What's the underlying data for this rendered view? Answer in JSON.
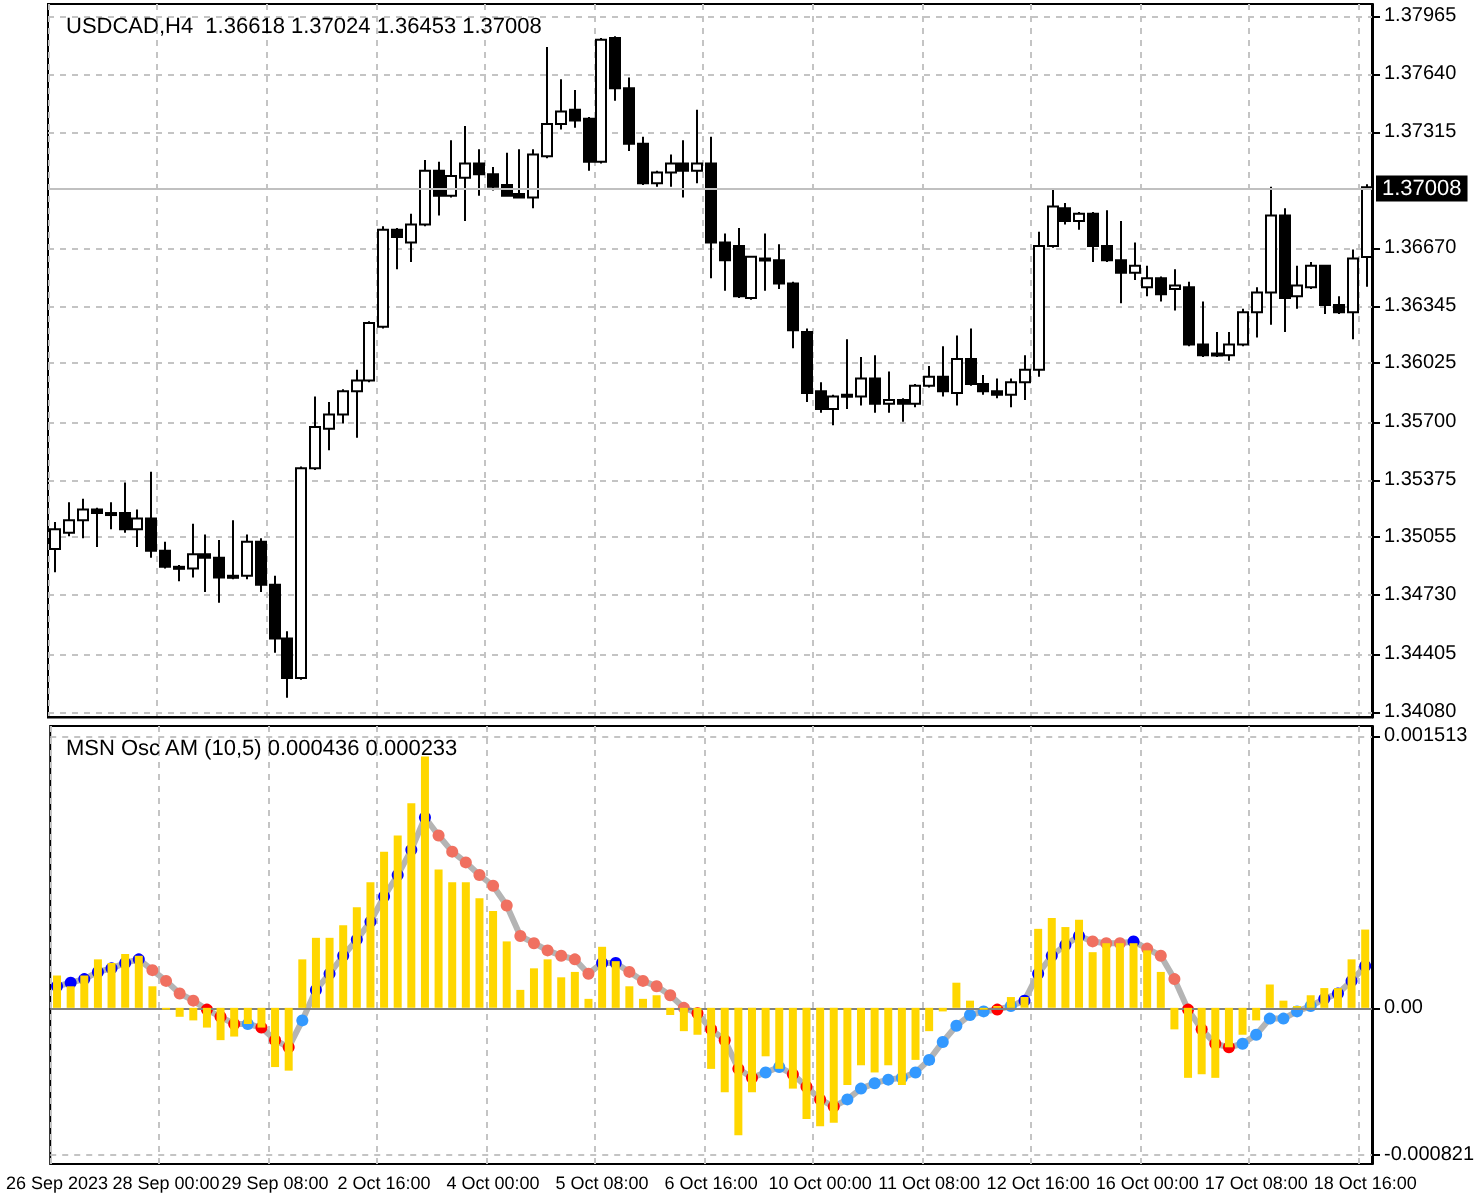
{
  "chart_data": [
    {
      "type": "candlestick",
      "title": "USDCAD,H4  1.36618 1.37024 1.36453 1.37008",
      "categories": [
        null,
        null,
        null,
        null,
        null,
        null,
        null,
        null,
        null,
        null,
        null,
        null,
        null,
        null,
        null,
        null,
        null,
        null,
        null,
        null,
        null,
        null,
        null,
        null,
        null,
        null,
        null,
        null,
        null,
        null,
        null,
        null,
        null,
        null,
        null,
        null,
        null,
        null,
        null,
        null,
        null,
        null,
        null,
        null,
        null,
        null,
        null,
        null,
        null,
        null,
        null,
        null,
        null,
        null,
        null,
        null,
        null,
        null,
        null,
        null,
        null,
        null,
        null,
        null,
        null,
        null,
        null,
        null,
        null,
        null,
        null,
        null,
        null,
        null,
        null,
        null,
        null,
        null,
        null,
        null,
        null,
        null,
        null,
        null,
        null,
        null,
        null,
        null,
        null,
        null,
        null,
        null,
        null,
        null,
        null,
        null,
        null
      ],
      "ohlc": [
        [
          1.3499,
          1.3514,
          1.3486,
          1.351
        ],
        [
          1.3508,
          1.3525,
          1.3506,
          1.3515
        ],
        [
          1.3515,
          1.3527,
          1.3505,
          1.3521
        ],
        [
          1.3521,
          1.3522,
          1.35,
          1.3519
        ],
        [
          1.3519,
          1.3525,
          1.351,
          1.3518
        ],
        [
          1.3519,
          1.3536,
          1.3508,
          1.351
        ],
        [
          1.351,
          1.3521,
          1.35,
          1.3516
        ],
        [
          1.3516,
          1.3542,
          1.3494,
          1.3498
        ],
        [
          1.3498,
          1.3503,
          1.3488,
          1.3489
        ],
        [
          1.3489,
          1.349,
          1.3481,
          1.3488
        ],
        [
          1.3488,
          1.3513,
          1.3483,
          1.3496
        ],
        [
          1.3496,
          1.3507,
          1.3475,
          1.3494
        ],
        [
          1.3494,
          1.3504,
          1.3469,
          1.3483
        ],
        [
          1.3484,
          1.3515,
          1.3482,
          1.3483
        ],
        [
          1.3484,
          1.3507,
          1.3482,
          1.3503
        ],
        [
          1.3503,
          1.3505,
          1.3475,
          1.3479
        ],
        [
          1.3479,
          1.3484,
          1.3441,
          1.3449
        ],
        [
          1.3449,
          1.3453,
          1.3416,
          1.3427
        ],
        [
          1.3427,
          1.3545,
          1.3426,
          1.3544
        ],
        [
          1.3544,
          1.3584,
          1.3543,
          1.3567
        ],
        [
          1.3566,
          1.3581,
          1.3554,
          1.3574
        ],
        [
          1.3574,
          1.3588,
          1.3569,
          1.3587
        ],
        [
          1.3587,
          1.3599,
          1.3561,
          1.3593
        ],
        [
          1.3593,
          1.3626,
          1.3592,
          1.3625
        ],
        [
          1.3623,
          1.3679,
          1.3622,
          1.3677
        ],
        [
          1.3677,
          1.3678,
          1.3655,
          1.3673
        ],
        [
          1.367,
          1.3686,
          1.3659,
          1.368
        ],
        [
          1.368,
          1.3716,
          1.3679,
          1.371
        ],
        [
          1.371,
          1.3715,
          1.3685,
          1.3696
        ],
        [
          1.3696,
          1.3727,
          1.3695,
          1.3707
        ],
        [
          1.3706,
          1.3735,
          1.3682,
          1.3714
        ],
        [
          1.3714,
          1.3722,
          1.3696,
          1.3708
        ],
        [
          1.3708,
          1.3712,
          1.3699,
          1.3701
        ],
        [
          1.3702,
          1.372,
          1.3696,
          1.3696
        ],
        [
          1.3697,
          1.3722,
          1.3695,
          1.3695
        ],
        [
          1.3695,
          1.3722,
          1.3689,
          1.3719
        ],
        [
          1.3718,
          1.3779,
          1.3717,
          1.3736
        ],
        [
          1.3736,
          1.3761,
          1.3733,
          1.3743
        ],
        [
          1.3744,
          1.3755,
          1.3734,
          1.3738
        ],
        [
          1.3739,
          1.374,
          1.371,
          1.3715
        ],
        [
          1.3715,
          1.3784,
          1.3714,
          1.3783
        ],
        [
          1.3784,
          1.3785,
          1.3749,
          1.3756
        ],
        [
          1.3756,
          1.3762,
          1.3721,
          1.3725
        ],
        [
          1.3725,
          1.3729,
          1.3702,
          1.3703
        ],
        [
          1.3703,
          1.371,
          1.3701,
          1.3709
        ],
        [
          1.3709,
          1.3719,
          1.3701,
          1.3714
        ],
        [
          1.3714,
          1.3727,
          1.3695,
          1.371
        ],
        [
          1.371,
          1.3744,
          1.3703,
          1.3714
        ],
        [
          1.3714,
          1.3729,
          1.365,
          1.367
        ],
        [
          1.367,
          1.3675,
          1.3643,
          1.366
        ],
        [
          1.3668,
          1.3678,
          1.3639,
          1.364
        ],
        [
          1.3639,
          1.3662,
          1.3638,
          1.3662
        ],
        [
          1.366,
          1.3675,
          1.3643,
          1.3661
        ],
        [
          1.366,
          1.3669,
          1.3644,
          1.3647
        ],
        [
          1.3647,
          1.3648,
          1.3611,
          1.3621
        ],
        [
          1.362,
          1.3622,
          1.3581,
          1.3586
        ],
        [
          1.3587,
          1.3592,
          1.3575,
          1.3577
        ],
        [
          1.3577,
          1.3585,
          1.3568,
          1.3584
        ],
        [
          1.3584,
          1.3616,
          1.3577,
          1.3585
        ],
        [
          1.3584,
          1.3606,
          1.3579,
          1.3594
        ],
        [
          1.3594,
          1.3607,
          1.3575,
          1.358
        ],
        [
          1.358,
          1.3598,
          1.3575,
          1.3582
        ],
        [
          1.3582,
          1.3583,
          1.357,
          1.358
        ],
        [
          1.358,
          1.3591,
          1.3578,
          1.359
        ],
        [
          1.359,
          1.3601,
          1.3589,
          1.3595
        ],
        [
          1.3595,
          1.3612,
          1.3584,
          1.3587
        ],
        [
          1.3586,
          1.3618,
          1.3579,
          1.3605
        ],
        [
          1.3605,
          1.3622,
          1.359,
          1.3591
        ],
        [
          1.3591,
          1.3596,
          1.3585,
          1.3587
        ],
        [
          1.3587,
          1.3594,
          1.3583,
          1.3585
        ],
        [
          1.3585,
          1.3594,
          1.3578,
          1.3592
        ],
        [
          1.3592,
          1.3607,
          1.3582,
          1.3599
        ],
        [
          1.3599,
          1.3676,
          1.3595,
          1.3668
        ],
        [
          1.3668,
          1.37,
          1.3667,
          1.369
        ],
        [
          1.3689,
          1.3692,
          1.368,
          1.3682
        ],
        [
          1.3682,
          1.3687,
          1.3677,
          1.3686
        ],
        [
          1.3686,
          1.3687,
          1.3659,
          1.3668
        ],
        [
          1.3668,
          1.3688,
          1.3659,
          1.366
        ],
        [
          1.366,
          1.3682,
          1.3636,
          1.3653
        ],
        [
          1.3653,
          1.367,
          1.3649,
          1.3657
        ],
        [
          1.3645,
          1.3657,
          1.364,
          1.365
        ],
        [
          1.365,
          1.3651,
          1.3637,
          1.3641
        ],
        [
          1.3644,
          1.3655,
          1.3632,
          1.3646
        ],
        [
          1.3645,
          1.3648,
          1.3612,
          1.3613
        ],
        [
          1.3613,
          1.3637,
          1.3606,
          1.3607
        ],
        [
          1.3608,
          1.362,
          1.3606,
          1.3607
        ],
        [
          1.3607,
          1.362,
          1.3604,
          1.3613
        ],
        [
          1.3613,
          1.3633,
          1.3612,
          1.3631
        ],
        [
          1.3631,
          1.3645,
          1.3617,
          1.3642
        ],
        [
          1.3642,
          1.3701,
          1.3624,
          1.3685
        ],
        [
          1.3685,
          1.3689,
          1.362,
          1.3639
        ],
        [
          1.364,
          1.3657,
          1.3633,
          1.3646
        ],
        [
          1.3645,
          1.3659,
          1.3644,
          1.3657
        ],
        [
          1.3657,
          1.3657,
          1.363,
          1.3635
        ],
        [
          1.3635,
          1.364,
          1.363,
          1.3631
        ],
        [
          1.3631,
          1.3666,
          1.3616,
          1.3661
        ],
        [
          1.36618,
          1.37024,
          1.36453,
          1.37008
        ]
      ],
      "ylim": [
        1.3405,
        1.3803
      ],
      "yticks": [
        1.37965,
        {
          "value": 1.3764,
          "label": "1.37640"
        },
        1.37315,
        {
          "value": 1.3667,
          "label": "1.36670"
        },
        1.36345,
        1.36025,
        {
          "value": 1.357,
          "label": "1.35700"
        },
        1.35375,
        1.35055,
        {
          "value": 1.3473,
          "label": "1.34730"
        },
        1.34405,
        {
          "value": 1.3408,
          "label": "1.34080"
        }
      ],
      "ref_lines": [
        {
          "axis": "y",
          "value": 1.37008,
          "label": "1.37008",
          "color": "#c0c0c0"
        }
      ],
      "grid": true,
      "tick_labels": "y"
    },
    {
      "type": "bar",
      "title": "MSN Osc AM (10,5) 0.000436 0.000233",
      "categories": [
        "26 Sep 2023",
        null,
        null,
        null,
        null,
        null,
        null,
        null,
        "28 Sep 00:00",
        null,
        null,
        null,
        null,
        null,
        null,
        null,
        "29 Sep 08:00",
        null,
        null,
        null,
        null,
        null,
        null,
        null,
        "2 Oct 16:00",
        null,
        null,
        null,
        null,
        null,
        null,
        null,
        "4 Oct 00:00",
        null,
        null,
        null,
        null,
        null,
        null,
        null,
        "5 Oct 08:00",
        null,
        null,
        null,
        null,
        null,
        null,
        null,
        "6 Oct 16:00",
        null,
        null,
        null,
        null,
        null,
        null,
        null,
        "10 Oct 00:00",
        null,
        null,
        null,
        null,
        null,
        null,
        null,
        "11 Oct 08:00",
        null,
        null,
        null,
        null,
        null,
        null,
        null,
        "12 Oct 16:00",
        null,
        null,
        null,
        null,
        null,
        null,
        null,
        "16 Oct 00:00",
        null,
        null,
        null,
        null,
        null,
        null,
        null,
        "17 Oct 08:00",
        null,
        null,
        null,
        null,
        null,
        null,
        null,
        "18 Oct 16:00"
      ],
      "series": [
        {
          "color": "#ffd700",
          "values": [
            0.00018,
            0.00012,
            0.00018,
            0.00027,
            0.00025,
            0.0003,
            0.00029,
            0.00012,
            -1e-05,
            -5e-05,
            -7e-05,
            -0.00011,
            -0.00018,
            -0.00016,
            -9e-05,
            -0.00011,
            -0.00033,
            -0.00035,
            0.00027,
            0.00039,
            0.00039,
            0.00046,
            0.00056,
            0.0007,
            0.00087,
            0.00096,
            0.00114,
            0.0014,
            0.00077,
            0.0007,
            0.0007,
            0.00061,
            0.00054,
            0.00037,
            0.0001,
            0.00022,
            0.00027,
            0.00017,
            0.0002,
            5e-05,
            0.00034,
            0.00026,
            0.00012,
            5e-05,
            7e-05,
            -4e-05,
            -0.00013,
            -0.00015,
            -0.00034,
            -0.00047,
            -0.00071,
            -0.00047,
            -0.00027,
            -0.00034,
            -0.00045,
            -0.00062,
            -0.00066,
            -0.00064,
            -0.00043,
            -0.00032,
            -0.00036,
            -0.00032,
            -0.00043,
            -0.00029,
            -0.00013,
            -2e-05,
            0.00014,
            4e-05,
            -1e-05,
            1e-05,
            6e-05,
            6e-05,
            0.00044,
            0.0005,
            0.00045,
            0.00049,
            0.00031,
            0.00036,
            0.00036,
            0.00036,
            0.00032,
            0.0002,
            -0.00012,
            -0.00039,
            -0.00037,
            -0.00039,
            -0.00022,
            -0.00015,
            -7e-05,
            0.00013,
            4e-05,
            1e-05,
            7e-05,
            0.00011,
            0.00011,
            0.00027,
            0.000436
          ]
        },
        {
          "type": "line",
          "color": "#b4b4b4",
          "values": [
            0.00012,
            0.00014,
            0.00016,
            0.0002,
            0.00022,
            0.00025,
            0.00027,
            0.00021,
            0.00015,
            8e-05,
            4e-05,
            -1e-05,
            -5e-05,
            -9e-05,
            -9e-05,
            -0.00011,
            -0.00018,
            -0.00022,
            -7e-05,
            0.0001,
            0.00019,
            0.00029,
            0.00038,
            0.00048,
            0.00062,
            0.00074,
            0.00088,
            0.00106,
            0.00096,
            0.00087,
            0.00081,
            0.00074,
            0.00068,
            0.00057,
            0.0004,
            0.00036,
            0.00032,
            0.00029,
            0.00027,
            0.00019,
            0.00025,
            0.00025,
            0.0002,
            0.00015,
            0.00012,
            7e-05,
            0,
            -3e-05,
            -0.00012,
            -0.00018,
            -0.00034,
            -0.00039,
            -0.00036,
            -0.00033,
            -0.00037,
            -0.00044,
            -0.00051,
            -0.00055,
            -0.00051,
            -0.00045,
            -0.00042,
            -0.0004,
            -0.00039,
            -0.00036,
            -0.00029,
            -0.00019,
            -0.0001,
            -4e-05,
            -2e-05,
            -1e-05,
            1e-05,
            4e-05,
            0.00019,
            0.00029,
            0.00035,
            0.0004,
            0.00037,
            0.00036,
            0.00036,
            0.00037,
            0.00033,
            0.00029,
            0.00016,
            -1e-05,
            -0.00012,
            -0.0002,
            -0.00022,
            -0.0002,
            -0.00015,
            -6e-05,
            -6e-05,
            -2e-05,
            1e-05,
            5e-05,
            8e-05,
            0.00015,
            0.000233
          ],
          "colors": [
            "#0000ff",
            "#0000ff",
            "#0000ff",
            "#0000ff",
            "#0000ff",
            "#0000ff",
            "#0000ff",
            "#f07060",
            "#f07060",
            "#f07060",
            "#f07060",
            "#ff0000",
            "#ff0000",
            "#ff0000",
            "#3399ff",
            "#ff0000",
            "#ff0000",
            "#ff0000",
            "#3399ff",
            "#0000ff",
            "#0000ff",
            "#0000ff",
            "#0000ff",
            "#0000ff",
            "#0000ff",
            "#0000ff",
            "#0000ff",
            "#0000ff",
            "#f07060",
            "#f07060",
            "#f07060",
            "#f07060",
            "#f07060",
            "#f07060",
            "#f07060",
            "#f07060",
            "#f07060",
            "#f07060",
            "#f07060",
            "#f07060",
            "#0000ff",
            "#0000ff",
            "#f07060",
            "#f07060",
            "#f07060",
            "#f07060",
            "#f07060",
            "#ff0000",
            "#ff0000",
            "#ff0000",
            "#ff0000",
            "#ff0000",
            "#3399ff",
            "#3399ff",
            "#ff0000",
            "#ff0000",
            "#ff0000",
            "#ff0000",
            "#3399ff",
            "#3399ff",
            "#3399ff",
            "#3399ff",
            "#3399ff",
            "#3399ff",
            "#3399ff",
            "#3399ff",
            "#3399ff",
            "#3399ff",
            "#3399ff",
            "#ff0000",
            "#3399ff",
            "#0000ff",
            "#0000ff",
            "#0000ff",
            "#0000ff",
            "#0000ff",
            "#f07060",
            "#f07060",
            "#f07060",
            "#0000ff",
            "#f07060",
            "#f07060",
            "#f07060",
            "#ff0000",
            "#ff0000",
            "#ff0000",
            "#ff0000",
            "#3399ff",
            "#3399ff",
            "#3399ff",
            "#3399ff",
            "#3399ff",
            "#3399ff",
            "#0000ff",
            "#0000ff",
            "#0000ff",
            "#0000ff"
          ]
        }
      ],
      "ylim": [
        -0.00087,
        0.00157
      ],
      "yticks": [
        0.001513,
        {
          "value": 0,
          "label": "0.00"
        },
        -0.000821
      ],
      "ref_lines": [
        {
          "axis": "y",
          "value": 0,
          "color": "#808080"
        }
      ],
      "marker": "circle",
      "grid": true
    }
  ]
}
